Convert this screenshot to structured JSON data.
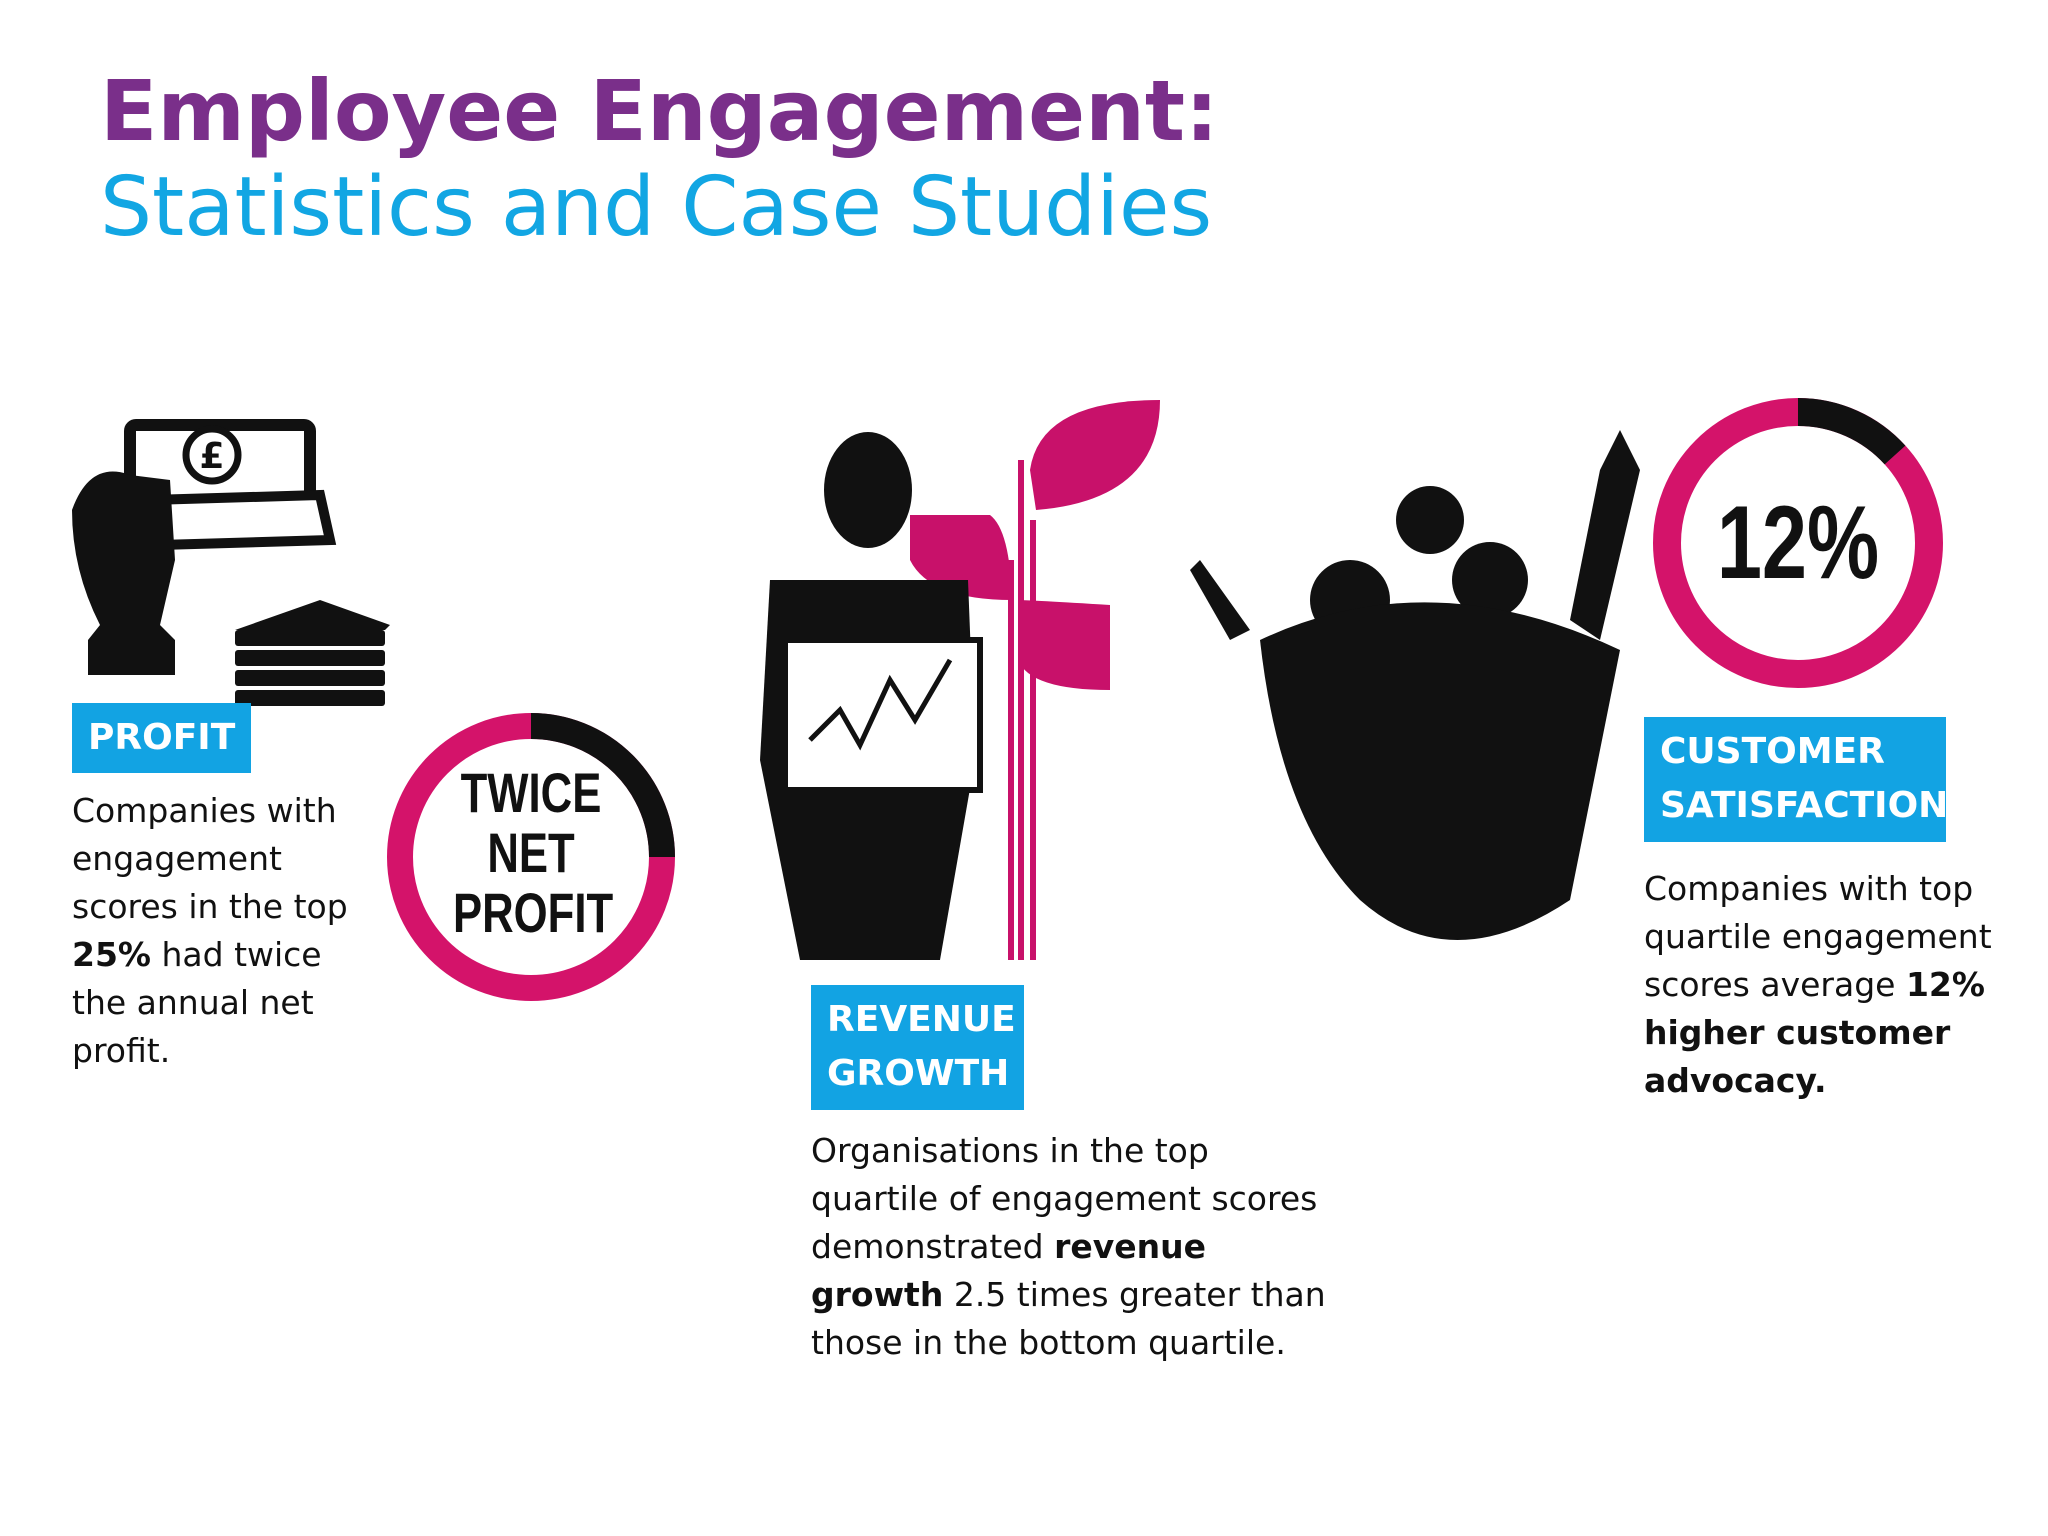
{
  "header": {
    "title_line1": "Employee Engagement:",
    "title_line2": "Statistics and Case Studies"
  },
  "sections": [
    {
      "label": "PROFIT",
      "ring_text": [
        "TWICE",
        "NET",
        "PROFIT"
      ],
      "text": [
        "Companies with engagement scores in the top ",
        "25%",
        " had twice the annual net profit."
      ]
    },
    {
      "label": [
        "REVENUE",
        "GROWTH"
      ],
      "text": [
        "Organisations in the top quartile of engagement scores demonstrated ",
        "revenue growth",
        " 2.5 times greater than those in the bottom quartile."
      ]
    },
    {
      "label": [
        "CUSTOMER",
        "SATISFACTION"
      ],
      "ring_text": [
        "12%"
      ],
      "text": [
        "Companies with top quartile engagement scores average ",
        "12% higher customer advocacy."
      ]
    }
  ]
}
